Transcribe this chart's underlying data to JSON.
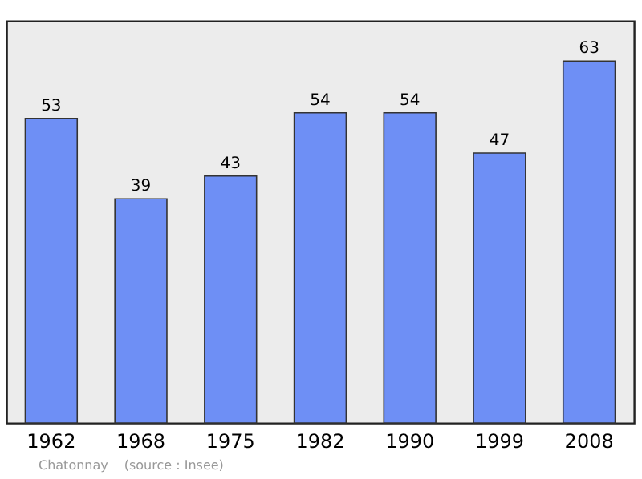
{
  "chart_data": {
    "type": "bar",
    "categories": [
      "1962",
      "1968",
      "1975",
      "1982",
      "1990",
      "1999",
      "2008"
    ],
    "values": [
      53,
      39,
      43,
      54,
      54,
      47,
      63
    ],
    "color": "#6e8ff5",
    "data_labels": true,
    "annotations": [
      "Chatonnay",
      "(source : Insee)"
    ]
  }
}
